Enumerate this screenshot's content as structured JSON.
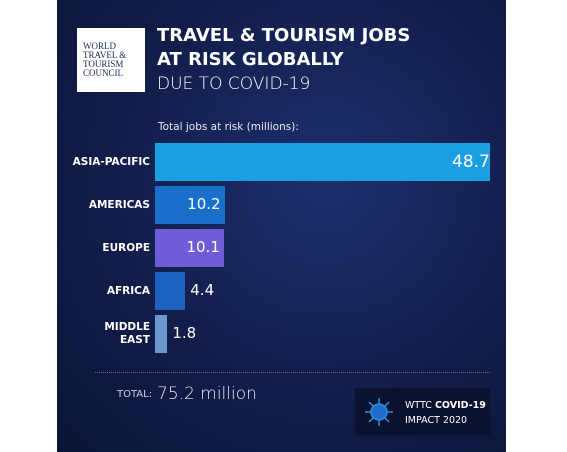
{
  "chart_data": {
    "type": "bar",
    "orientation": "horizontal",
    "logo": [
      "WORLD",
      "TRAVEL &",
      "TOURISM",
      "COUNCIL"
    ],
    "title": [
      "TRAVEL & TOURISM JOBS",
      "AT RISK GLOBALLY"
    ],
    "subtitle": "DUE TO COVID-19",
    "axis_label": "Total jobs at risk (millions):",
    "categories": [
      "ASIA-PACIFIC",
      "AMERICAS",
      "EUROPE",
      "AFRICA",
      "MIDDLE\nEAST"
    ],
    "values": [
      48.7,
      10.2,
      10.1,
      4.4,
      1.8
    ],
    "colors": [
      "#1b9fe3",
      "#1a6fcb",
      "#6f5cd6",
      "#1b62c0",
      "#6a99cf"
    ],
    "total_label": "TOTAL:",
    "total": "75.2 million",
    "footer": {
      "prefix": "WTTC",
      "bold": "COVID-19",
      "line2": "IMPACT 2020"
    }
  }
}
